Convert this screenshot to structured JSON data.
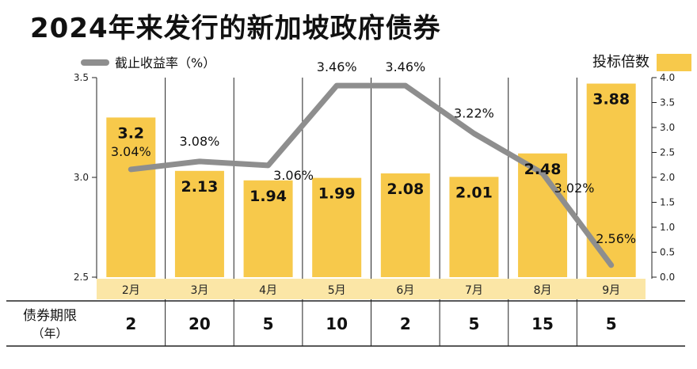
{
  "title": "2024年来发行的新加坡政府债券",
  "legend": {
    "line_label": "截止收益率（%）",
    "bar_label": "投标倍数"
  },
  "colors": {
    "bar": "#f7c94b",
    "line": "#8e8e8e",
    "category_band": "#fbe6a6",
    "text": "#111111"
  },
  "table": {
    "row_label_line1": "债券期限",
    "row_label_line2": "（年）",
    "values": [
      "2",
      "20",
      "5",
      "10",
      "2",
      "5",
      "15",
      "5"
    ]
  },
  "chart_data": {
    "type": "bar",
    "categories": [
      "2月",
      "3月",
      "4月",
      "5月",
      "6月",
      "7月",
      "8月",
      "9月"
    ],
    "series": [
      {
        "name": "投标倍数",
        "type": "bar",
        "axis": "right",
        "values": [
          3.2,
          2.13,
          1.94,
          1.99,
          2.08,
          2.01,
          2.48,
          3.88
        ],
        "labels": [
          "3.2",
          "2.13",
          "1.94",
          "1.99",
          "2.08",
          "2.01",
          "2.48",
          "3.88"
        ]
      },
      {
        "name": "截止收益率（%）",
        "type": "line",
        "axis": "left",
        "values": [
          3.04,
          3.08,
          3.06,
          3.46,
          3.46,
          3.22,
          3.02,
          2.56
        ],
        "labels": [
          "3.04%",
          "3.08%",
          "3.06%",
          "3.46%",
          "3.46%",
          "3.22%",
          "3.02%",
          "2.56%"
        ]
      }
    ],
    "y_left": {
      "min": 2.5,
      "max": 3.5,
      "ticks": [
        "2.5",
        "3.0",
        "3.5"
      ]
    },
    "y_right": {
      "min": 0.0,
      "max": 4.0,
      "ticks": [
        "0.0",
        "0.5",
        "1.0",
        "1.5",
        "2.0",
        "2.5",
        "3.0",
        "3.5",
        "4.0"
      ]
    }
  }
}
